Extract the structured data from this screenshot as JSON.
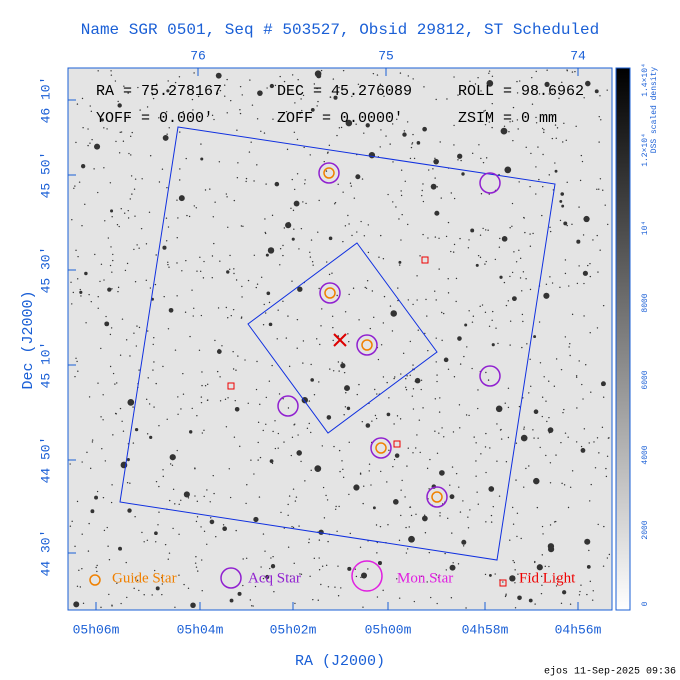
{
  "header": {
    "title": "Name SGR 0501, Seq # 503527, Obsid 29812, ST Scheduled"
  },
  "info": [
    [
      "RA = 75.278167",
      "DEC = 45.276089",
      "ROLL = 98.6962"
    ],
    [
      "YOFF =   0.000'",
      "ZOFF =  0.0000'",
      "ZSIM = 0 mm"
    ]
  ],
  "axes": {
    "top_ticks": [
      "76",
      "75",
      "74"
    ],
    "left_ticks": [
      "46 10'",
      "45 50'",
      "45 30'",
      "45 10'",
      "44 50'",
      "44 30'"
    ],
    "bottom_ticks": [
      "05h06m",
      "05h04m",
      "05h02m",
      "05h00m",
      "04h58m",
      "04h56m"
    ],
    "x_label": "RA (J2000)",
    "y_label": "Dec (J2000)"
  },
  "colorbar": {
    "label": "DSS scaled density",
    "ticks": [
      "0",
      "2000",
      "4000",
      "6000",
      "8000",
      "10⁴",
      "1.2×10⁴",
      "1.4×10⁴"
    ]
  },
  "legend": [
    "Guide Star",
    "Acq Star",
    "Mon Star",
    "Fid Light"
  ],
  "footer": "ejos 11-Sep-2025 09:36"
}
